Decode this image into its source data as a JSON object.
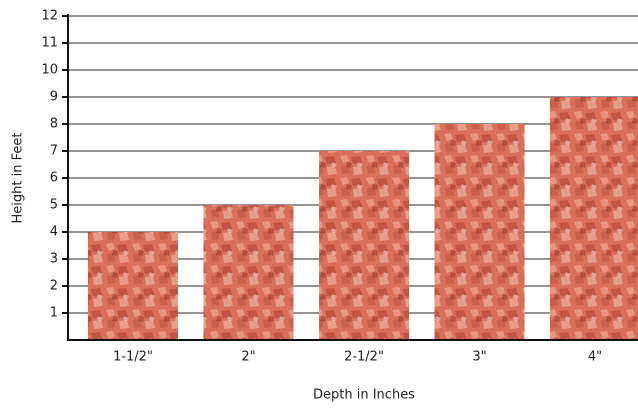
{
  "chart_data": {
    "type": "bar",
    "x_label": "Depth in Inches",
    "y_label": "Height in Feet",
    "categories": [
      "1-1/2\"",
      "2\"",
      "2-1/2\"",
      "3\"",
      "4\""
    ],
    "values": [
      4,
      5,
      7,
      8,
      9
    ],
    "color": "#d8705a",
    "ylim": [
      0,
      12
    ],
    "yticks": [
      1,
      2,
      3,
      4,
      5,
      6,
      7,
      8,
      9,
      10,
      11,
      12
    ],
    "grid": true
  }
}
